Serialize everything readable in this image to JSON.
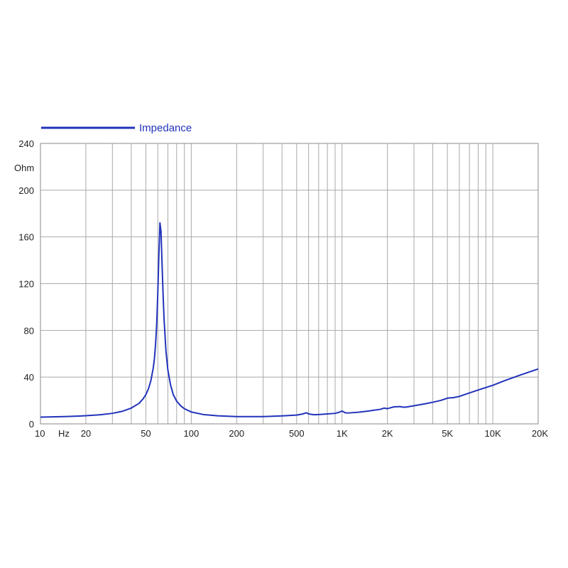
{
  "chart_data": {
    "type": "line",
    "title": "",
    "xlabel": "Hz",
    "ylabel": "Ohm",
    "x_scale": "log",
    "xlim": [
      10,
      20000
    ],
    "ylim": [
      0,
      240
    ],
    "grid": true,
    "legend": "top-left",
    "x_ticks": [
      {
        "value": 10,
        "label": "10"
      },
      {
        "value": 20,
        "label": "20"
      },
      {
        "value": 50,
        "label": "50"
      },
      {
        "value": 100,
        "label": "100"
      },
      {
        "value": 200,
        "label": "200"
      },
      {
        "value": 500,
        "label": "500"
      },
      {
        "value": 1000,
        "label": "1K"
      },
      {
        "value": 2000,
        "label": "2K"
      },
      {
        "value": 5000,
        "label": "5K"
      },
      {
        "value": 10000,
        "label": "10K"
      },
      {
        "value": 20000,
        "label": "20K"
      }
    ],
    "y_ticks": [
      0,
      40,
      80,
      120,
      160,
      200,
      240
    ],
    "series": [
      {
        "name": "Impedance",
        "color": "#2233bb",
        "x": [
          10,
          12,
          15,
          18,
          20,
          25,
          30,
          35,
          40,
          45,
          48,
          50,
          52,
          54,
          56,
          57,
          58,
          59,
          60,
          61,
          62,
          63,
          64,
          65,
          66,
          68,
          70,
          73,
          76,
          80,
          85,
          90,
          100,
          120,
          150,
          200,
          300,
          400,
          500,
          550,
          580,
          600,
          650,
          700,
          800,
          900,
          950,
          1000,
          1050,
          1100,
          1300,
          1500,
          1800,
          1900,
          2000,
          2100,
          2200,
          2400,
          2600,
          2700,
          3000,
          3500,
          4000,
          4500,
          5000,
          5500,
          6000,
          7000,
          8000,
          10000,
          12000,
          15000,
          18000,
          20000
        ],
        "values": [
          5.8,
          6.0,
          6.3,
          6.7,
          7.0,
          7.8,
          9.0,
          10.8,
          13.5,
          17.5,
          21.5,
          25,
          30,
          37,
          48,
          56,
          68,
          85,
          112,
          145,
          172,
          165,
          138,
          112,
          90,
          62,
          46,
          33,
          25,
          19.5,
          15.5,
          13,
          10.2,
          8.0,
          6.9,
          6.2,
          6.2,
          6.8,
          7.5,
          8.5,
          9.5,
          8.5,
          7.8,
          8.0,
          8.5,
          9.0,
          9.8,
          11.0,
          9.5,
          9.3,
          10.0,
          11.0,
          12.5,
          13.5,
          13.0,
          13.8,
          14.5,
          14.8,
          14.2,
          14.5,
          15.5,
          17.0,
          18.5,
          20.0,
          22.0,
          22.5,
          23.5,
          26.5,
          29.0,
          33.0,
          37.0,
          41.5,
          45.0,
          47.0
        ]
      }
    ]
  }
}
